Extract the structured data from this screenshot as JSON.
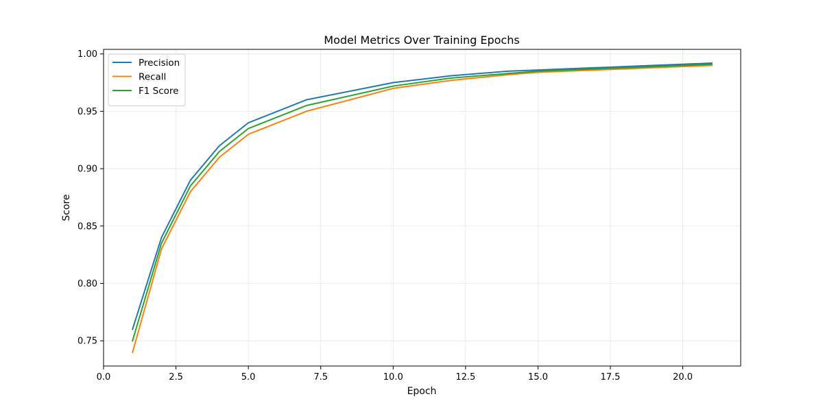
{
  "chart_data": {
    "type": "line",
    "title": "Model Metrics Over Training Epochs",
    "xlabel": "Epoch",
    "ylabel": "Score",
    "xlim": [
      0.0,
      22.0
    ],
    "ylim": [
      0.728,
      1.004
    ],
    "x_ticks": [
      "0.0",
      "2.5",
      "5.0",
      "7.5",
      "10.0",
      "12.5",
      "15.0",
      "17.5",
      "20.0"
    ],
    "y_ticks": [
      "0.75",
      "0.80",
      "0.85",
      "0.90",
      "0.95",
      "1.00"
    ],
    "grid": true,
    "legend_position": "top-left",
    "x": [
      1,
      2,
      3,
      4,
      5,
      7,
      10,
      12,
      14,
      15,
      17,
      19,
      21
    ],
    "series": [
      {
        "name": "Precision",
        "color": "#1f77b4",
        "values": [
          0.76,
          0.84,
          0.89,
          0.92,
          0.94,
          0.96,
          0.975,
          0.981,
          0.985,
          0.986,
          0.988,
          0.99,
          0.992
        ]
      },
      {
        "name": "Recall",
        "color": "#ff7f0e",
        "values": [
          0.74,
          0.83,
          0.88,
          0.91,
          0.93,
          0.95,
          0.97,
          0.977,
          0.982,
          0.984,
          0.986,
          0.988,
          0.99
        ]
      },
      {
        "name": "F1 Score",
        "color": "#2ca02c",
        "values": [
          0.75,
          0.835,
          0.885,
          0.915,
          0.935,
          0.955,
          0.972,
          0.979,
          0.983,
          0.985,
          0.987,
          0.989,
          0.991
        ]
      }
    ]
  }
}
